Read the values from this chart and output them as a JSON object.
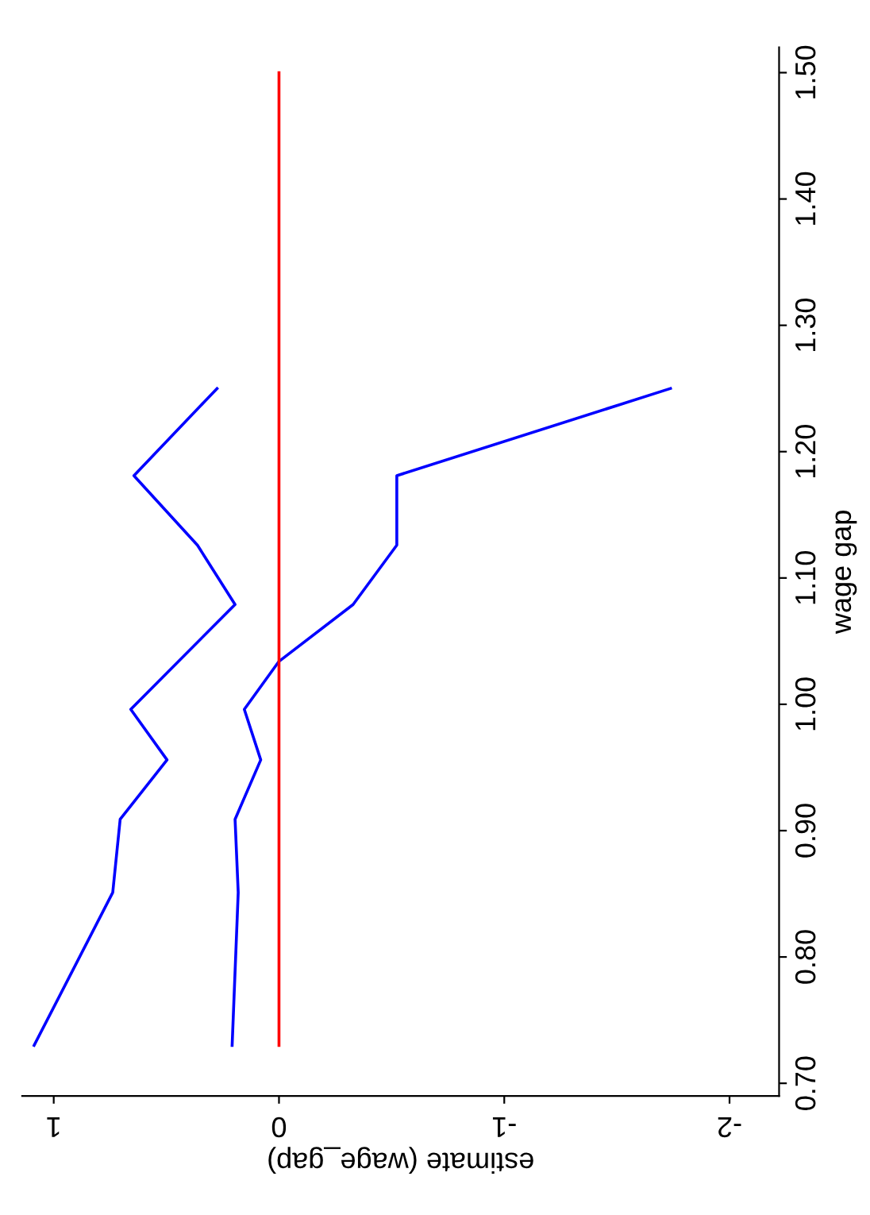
{
  "chart_data": {
    "type": "line",
    "xlabel": "estimate (wage_gap)",
    "ylabel": "wage gap",
    "xlim": [
      1.14,
      -2.22
    ],
    "xticks": [
      1,
      0,
      -1,
      -2
    ],
    "ylim": [
      0.69,
      1.52
    ],
    "yticks": [
      {
        "value": 0.7,
        "label": "0.70"
      },
      {
        "value": 0.8,
        "label": "0.80"
      },
      {
        "value": 0.9,
        "label": "0.90"
      },
      {
        "value": 1.0,
        "label": "1.00"
      },
      {
        "value": 1.1,
        "label": "1.10"
      },
      {
        "value": 1.2,
        "label": "1.20"
      },
      {
        "value": 1.3,
        "label": "1.30"
      },
      {
        "value": 1.4,
        "label": "1.40"
      },
      {
        "value": 1.5,
        "label": "1.50"
      }
    ],
    "grid": false,
    "legend": false,
    "line_style": "solid",
    "marker": "none",
    "series": [
      {
        "color": "#0000ff",
        "x": [
          1.087,
          0.738,
          0.705,
          0.497,
          0.658,
          0.195,
          0.362,
          0.644,
          0.275
        ],
        "values": [
          0.73,
          0.851,
          0.909,
          0.956,
          0.996,
          1.079,
          1.126,
          1.181,
          1.25
        ]
      },
      {
        "color": "#0000ff",
        "x": [
          0.208,
          0.181,
          0.195,
          0.081,
          0.154,
          0,
          -0.329,
          -0.523,
          -0.523,
          -1.738
        ],
        "values": [
          0.73,
          0.851,
          0.909,
          0.956,
          0.996,
          1.034,
          1.079,
          1.126,
          1.181,
          1.25
        ]
      },
      {
        "color": "#ff0000",
        "x": [
          0,
          0
        ],
        "values": [
          0.73,
          1.5
        ]
      }
    ]
  }
}
